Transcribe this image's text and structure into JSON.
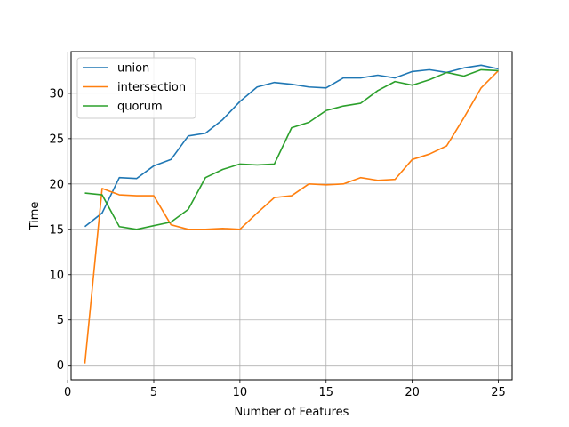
{
  "chart_data": {
    "type": "line",
    "title": "",
    "xlabel": "Number of Features",
    "ylabel": "Time",
    "xlim": [
      0.2,
      25.8
    ],
    "ylim": [
      -1.6,
      34.6
    ],
    "xticks": [
      0,
      5,
      10,
      15,
      20,
      25
    ],
    "yticks": [
      0,
      5,
      10,
      15,
      20,
      25,
      30
    ],
    "grid": true,
    "legend_position": "top-left",
    "x": [
      1,
      2,
      3,
      4,
      5,
      6,
      7,
      8,
      9,
      10,
      11,
      12,
      13,
      14,
      15,
      16,
      17,
      18,
      19,
      20,
      21,
      22,
      23,
      24,
      25
    ],
    "series": [
      {
        "name": "union",
        "color": "#1f77b4",
        "values": [
          15.3,
          16.8,
          20.7,
          20.6,
          22.0,
          22.7,
          25.3,
          25.6,
          27.1,
          29.1,
          30.7,
          31.2,
          31.0,
          30.7,
          30.6,
          31.7,
          31.7,
          32.0,
          31.7,
          32.4,
          32.6,
          32.3,
          32.8,
          33.1,
          32.7
        ]
      },
      {
        "name": "intersection",
        "color": "#ff7f0e",
        "values": [
          0.2,
          19.5,
          18.8,
          18.7,
          18.7,
          15.5,
          15.0,
          15.0,
          15.1,
          15.0,
          16.8,
          18.5,
          18.7,
          20.0,
          19.9,
          20.0,
          20.7,
          20.4,
          20.5,
          22.7,
          23.3,
          24.2,
          27.3,
          30.6,
          32.5
        ]
      },
      {
        "name": "quorum",
        "color": "#2ca02c",
        "values": [
          19.0,
          18.8,
          15.3,
          15.0,
          15.4,
          15.8,
          17.2,
          20.7,
          21.6,
          22.2,
          22.1,
          22.2,
          26.2,
          26.8,
          28.1,
          28.6,
          28.9,
          30.3,
          31.3,
          30.9,
          31.5,
          32.3,
          31.9,
          32.6,
          32.5
        ]
      }
    ]
  }
}
